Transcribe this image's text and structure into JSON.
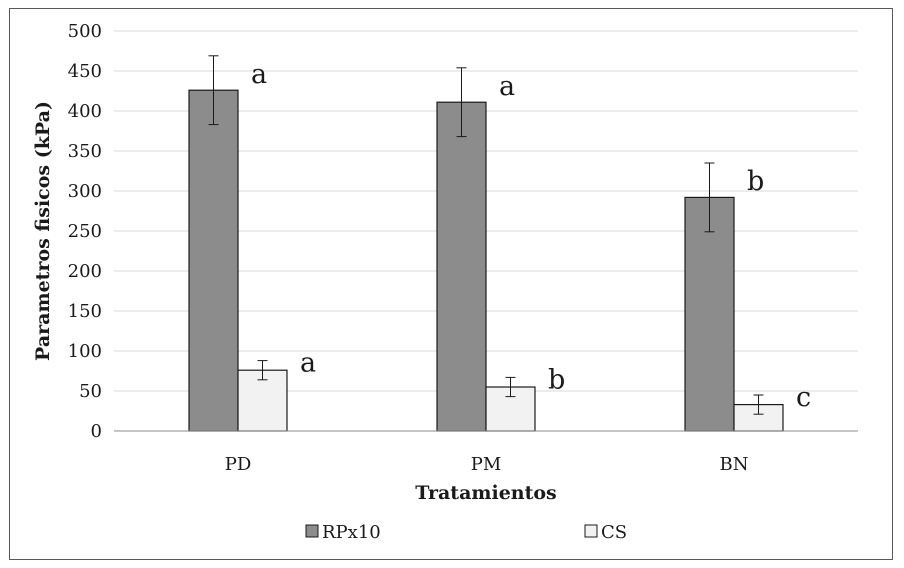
{
  "chart_data": {
    "type": "bar",
    "xlabel": "Tratamientos",
    "ylabel": "Parametros fisicos (kPa)",
    "ylim": [
      0,
      500
    ],
    "yticks": [
      0,
      50,
      100,
      150,
      200,
      250,
      300,
      350,
      400,
      450,
      500
    ],
    "grid": true,
    "legend_position": "bottom",
    "categories": [
      "PD",
      "PM",
      "BN"
    ],
    "series": [
      {
        "name": "RPx10",
        "color": "#8c8c8c",
        "values": [
          426,
          411,
          292
        ],
        "error": [
          43,
          43,
          43
        ],
        "letters": [
          "a",
          "a",
          "b"
        ]
      },
      {
        "name": "CS",
        "color": "#f2f2f2",
        "values": [
          76,
          55,
          33
        ],
        "error": [
          12,
          12,
          12
        ],
        "letters": [
          "a",
          "b",
          "c"
        ]
      }
    ]
  }
}
